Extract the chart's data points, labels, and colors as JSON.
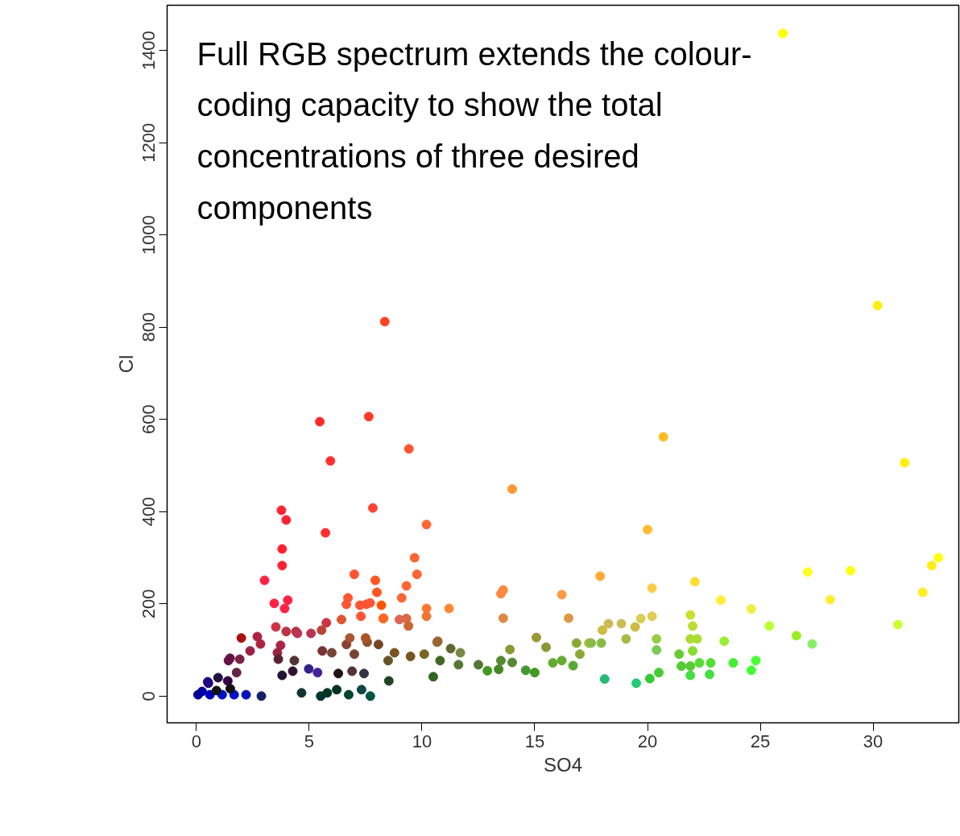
{
  "chart_data": {
    "type": "scatter",
    "xlabel": "SO4",
    "ylabel": "Cl",
    "annotations": [
      "Full RGB spectrum extends the colour-coding capacity to show the total concentrations of three desired components"
    ],
    "xlim": [
      -1.3,
      33.8
    ],
    "ylim": [
      -58,
      1498
    ],
    "xticks": [
      0,
      5,
      10,
      15,
      20,
      25,
      30
    ],
    "yticks": [
      0,
      200,
      400,
      600,
      800,
      1000,
      1200,
      1400
    ],
    "grid": false,
    "marker": "circle",
    "x": [
      26.0,
      30.2,
      20.7,
      31.4,
      14.0,
      20.0,
      8.35,
      5.47,
      7.64,
      5.94,
      9.42,
      7.82,
      5.72,
      10.2,
      3.77,
      3.98,
      3.8,
      3.8,
      3.02,
      4.05,
      3.45,
      3.91,
      9.67,
      9.78,
      7.0,
      7.93,
      8.0,
      9.31,
      9.1,
      10.2,
      11.2,
      6.72,
      6.65,
      7.25,
      7.53,
      7.7,
      7.29,
      8.28,
      10.2,
      9.31,
      6.43,
      5.76,
      3.52,
      3.98,
      4.41,
      5.08,
      1.99,
      2.7,
      2.84,
      2.38,
      3.73,
      3.59,
      1.92,
      1.42,
      1.78,
      1.39,
      0.53,
      0.25,
      0.6,
      1.14,
      1.67,
      2.2,
      0.07,
      0.89,
      2.88,
      4.66,
      5.51,
      5.8,
      6.22,
      6.75,
      7.32,
      7.71,
      4.98,
      5.37,
      3.8,
      4.27,
      6.29,
      6.9,
      7.43,
      3.63,
      4.34,
      5.58,
      6.0,
      7.0,
      6.65,
      7.57,
      8.07,
      8.78,
      9.49,
      8.5,
      10.1,
      10.67,
      11.27,
      10.8,
      11.62,
      12.5,
      10.5,
      8.53,
      12.9,
      13.4,
      13.5,
      14.0,
      14.6,
      15.0,
      13.9,
      15.07,
      15.5,
      15.8,
      16.2,
      16.7,
      17.0,
      17.4,
      18.0,
      18.27,
      18.84,
      19.7,
      19.45,
      20.2,
      19.05,
      17.95,
      17.5,
      16.85,
      18.1,
      19.5,
      20.1,
      20.5,
      20.4,
      20.4,
      21.4,
      21.9,
      22.0,
      21.9,
      22.2,
      22.0,
      21.5,
      21.9,
      22.3,
      21.9,
      22.75,
      22.8,
      23.4,
      22.1,
      23.25,
      24.6,
      20.2,
      17.9,
      13.6,
      13.5,
      13.6,
      16.2,
      16.5,
      23.8,
      24.8,
      24.6,
      25.4,
      27.1,
      29.0,
      28.1,
      26.6,
      27.3,
      31.1,
      32.2,
      32.6,
      32.9,
      8.2,
      8.3,
      9.0,
      9.4,
      10.7,
      11.7,
      6.8,
      7.5,
      4.48,
      5.55,
      1.49,
      0.5,
      0.96,
      1.5
    ],
    "values": [
      1437,
      847,
      562,
      506,
      449,
      361,
      812,
      595,
      606,
      510,
      536,
      408,
      354,
      372,
      403,
      382,
      319,
      283,
      251,
      208,
      201,
      190,
      300,
      264,
      264,
      251,
      225,
      239,
      213,
      190,
      190,
      213,
      199,
      197,
      199,
      202,
      173,
      168,
      173,
      168,
      166,
      159,
      150,
      140,
      140,
      136,
      126,
      129,
      113,
      98,
      110,
      94,
      80,
      77,
      51,
      33,
      28,
      10,
      3,
      3,
      3,
      3,
      3,
      12,
      0,
      7,
      0,
      7,
      14,
      3,
      14,
      0,
      59,
      51,
      45,
      54,
      49,
      54,
      49,
      80,
      77,
      98,
      94,
      91,
      112,
      117,
      112,
      94,
      86,
      77,
      91,
      117,
      103,
      77,
      68,
      68,
      42,
      33,
      55,
      58,
      77,
      73,
      56,
      51,
      101,
      127,
      106,
      72,
      77,
      66,
      91,
      115,
      143,
      157,
      157,
      168,
      150,
      173,
      124,
      115,
      115,
      115,
      37,
      28,
      38,
      51,
      124,
      100,
      91,
      176,
      152,
      124,
      124,
      98,
      65,
      65,
      72,
      45,
      47,
      72,
      119,
      248,
      208,
      189,
      234,
      260,
      230,
      222,
      169,
      220,
      169,
      72,
      77,
      56,
      152,
      269,
      272,
      209,
      131,
      113,
      155,
      225,
      283,
      300,
      197,
      169,
      166,
      152,
      119,
      94,
      126,
      126,
      136,
      143,
      82,
      31,
      40,
      16
    ],
    "colors": [
      "#ffff00",
      "#ffee11",
      "#ffbb22",
      "#ffee11",
      "#ff9933",
      "#ffbb33",
      "#ff4422",
      "#ff2a2a",
      "#ff3a2a",
      "#ff3030",
      "#ff5533",
      "#ff4433",
      "#ff3030",
      "#ff6633",
      "#ff2233",
      "#ff2233",
      "#ff2233",
      "#ff2233",
      "#ff2244",
      "#ff2244",
      "#ff2244",
      "#ff2244",
      "#ff6633",
      "#ff6633",
      "#ff5533",
      "#ff5522",
      "#ff5522",
      "#ff6633",
      "#ff6633",
      "#ff7733",
      "#ff8833",
      "#ff5533",
      "#ff5533",
      "#ff5533",
      "#ff5533",
      "#ff5533",
      "#ff5533",
      "#ff6622",
      "#ee7733",
      "#dd6644",
      "#dd5533",
      "#cc3344",
      "#cc3344",
      "#bb3344",
      "#bb3344",
      "#bb3355",
      "#aa1111",
      "#aa2244",
      "#aa2244",
      "#992244",
      "#aa2244",
      "#992244",
      "#772244",
      "#661144",
      "#662244",
      "#330044",
      "#220066",
      "#0000aa",
      "#0000bb",
      "#0011cc",
      "#0011cc",
      "#0011bb",
      "#000099",
      "#111111",
      "#112266",
      "#113333",
      "#003333",
      "#003322",
      "#003322",
      "#004433",
      "#114444",
      "#005544",
      "#332288",
      "#442299",
      "#221133",
      "#331133",
      "#221111",
      "#553333",
      "#333344",
      "#552233",
      "#553333",
      "#773333",
      "#774433",
      "#774433",
      "#884433",
      "#885533",
      "#774422",
      "#775522",
      "#775522",
      "#665522",
      "#776622",
      "#996633",
      "#666633",
      "#446622",
      "#557733",
      "#557733",
      "#336622",
      "#224422",
      "#449922",
      "#448822",
      "#558833",
      "#558833",
      "#449933",
      "#449922",
      "#889933",
      "#999933",
      "#889933",
      "#66aa33",
      "#66aa33",
      "#55aa33",
      "#88aa33",
      "#aabb44",
      "#ccbb44",
      "#ccbb55",
      "#ccbb55",
      "#ddcc55",
      "#ccbb44",
      "#ddcc55",
      "#aabb44",
      "#88bb44",
      "#88bb44",
      "#88aa33",
      "#22bb77",
      "#22cc77",
      "#33cc33",
      "#44cc33",
      "#99cc44",
      "#77cc55",
      "#66cc33",
      "#ccdd33",
      "#bbdd33",
      "#aadd33",
      "#aadd33",
      "#88dd33",
      "#55cc33",
      "#55cc33",
      "#55dd33",
      "#44dd44",
      "#44dd44",
      "#55dd33",
      "#99ee33",
      "#ffdd33",
      "#ffee33",
      "#eeee44",
      "#ffcc44",
      "#ffaa33",
      "#ff8844",
      "#ff8844",
      "#dd8844",
      "#ff9944",
      "#dd9944",
      "#44ee33",
      "#44ff33",
      "#44ff33",
      "#bbff33",
      "#ffff22",
      "#ffff11",
      "#ffee33",
      "#99ee22",
      "#88ee66",
      "#ccff33",
      "#ffee22",
      "#ffee11",
      "#ffff11",
      "#ff5500",
      "#ff6622",
      "#dd6655",
      "#cc6633",
      "#996633",
      "#778844",
      "#aa5533",
      "#aa5522",
      "#bb3355",
      "#bb4433",
      "#661144",
      "#220088",
      "#221144",
      "#111111"
    ]
  }
}
